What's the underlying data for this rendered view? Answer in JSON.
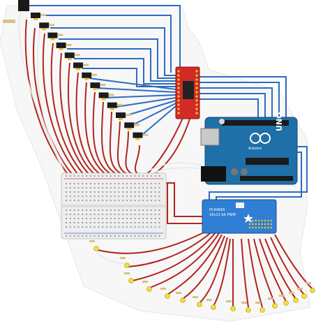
{
  "diagram": {
    "boards": {
      "arduino": {
        "brand_text": "UNO",
        "maker_text": "Arduino",
        "pin_label": "DIGITAL (PWM~)"
      },
      "servo_driver": {
        "title_text": "PCA9685",
        "subtitle_text": "16x12-bit PWM"
      },
      "mux_board": {
        "label_text": ""
      }
    },
    "components": {
      "left_sensor_count": 13,
      "bottom_led_count": 16,
      "breadboard": "half-size"
    },
    "colors": {
      "signal_wire": "#2d6cc0",
      "power_wire": "#b3241c",
      "aux_wire": "#e8e8e8",
      "arduino_board": "#1f6fa8",
      "driver_board": "#2f7fd4",
      "mux_board": "#d22b26",
      "led": "#f2e13a"
    }
  }
}
